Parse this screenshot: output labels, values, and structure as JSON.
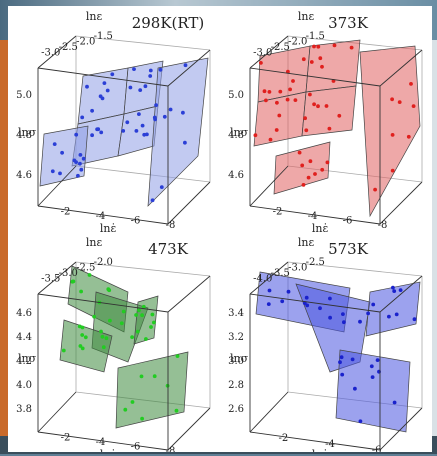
{
  "chart_data": [
    {
      "type": "scatter",
      "title": "298K(RT)",
      "color": "#2b3fd6",
      "plane_color": "#8f9ee6",
      "x_axis": {
        "label": "lnε̇",
        "ticks": [
          "-2",
          "-4",
          "-6",
          "-8"
        ]
      },
      "y_axis": {
        "label": "lnε",
        "ticks": [
          "-3.0",
          "-2.5",
          "-2.0",
          "-1.5"
        ]
      },
      "z_axis": {
        "label": "lnσ",
        "ticks": [
          "5.0",
          "4.8",
          "4.6"
        ]
      }
    },
    {
      "type": "scatter",
      "title": "373K",
      "color": "#e0201e",
      "plane_color": "#e06060",
      "x_axis": {
        "label": "lnε̇",
        "ticks": [
          "-2",
          "-4",
          "-6",
          "-8"
        ]
      },
      "y_axis": {
        "label": "lnε",
        "ticks": [
          "-3.0",
          "-2.5",
          "-2.0",
          "-1.5"
        ]
      },
      "z_axis": {
        "label": "lnσ",
        "ticks": [
          "5.0",
          "4.8",
          "4.6"
        ]
      }
    },
    {
      "type": "scatter",
      "title": "473K",
      "color": "#22cc22",
      "plane_color": "#3e8a3e",
      "x_axis": {
        "label": "lnε̇",
        "ticks": [
          "-2",
          "-4",
          "-6",
          "-8"
        ]
      },
      "y_axis": {
        "label": "lnε",
        "ticks": [
          "-3.5",
          "-3.0",
          "-2.5",
          "-2.0"
        ]
      },
      "z_axis": {
        "label": "lnσ",
        "ticks": [
          "4.6",
          "4.4",
          "4.2",
          "4.0",
          "3.8"
        ]
      }
    },
    {
      "type": "scatter",
      "title": "573K",
      "color": "#1a22cc",
      "plane_color": "#4b55e0",
      "x_axis": {
        "label": "lnε̇",
        "ticks": [
          "-2",
          "-4",
          "-6"
        ]
      },
      "y_axis": {
        "label": "lnε",
        "ticks": [
          "-4.0",
          "-3.5",
          "-3.0",
          "-2.5"
        ]
      },
      "z_axis": {
        "label": "lnσ",
        "ticks": [
          "3.4",
          "3.2",
          "3.0",
          "2.8",
          "2.6"
        ]
      }
    }
  ]
}
